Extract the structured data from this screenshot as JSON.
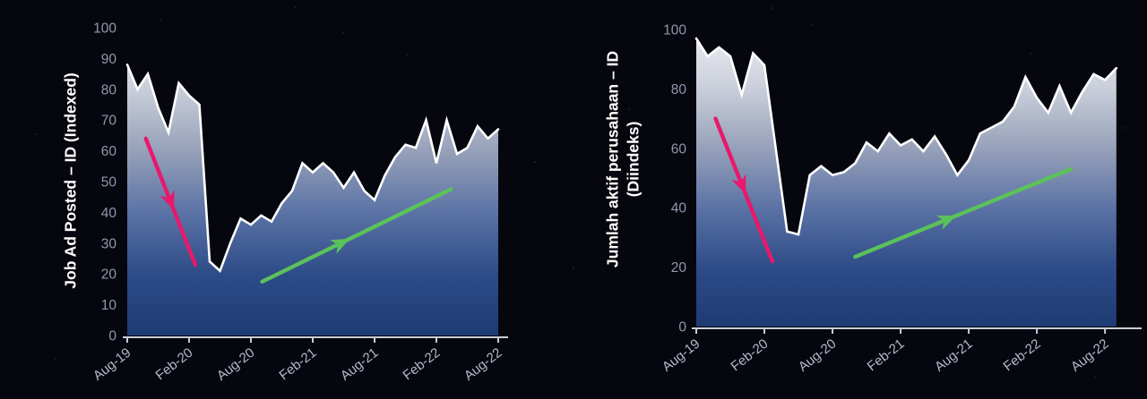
{
  "style": {
    "background": "#06070E",
    "area_line_color": "#FFFFFF",
    "area_gradient": [
      "#EDEEF2",
      "#C9CEDA",
      "#96A0B9",
      "#5A72A5",
      "#2D4B87",
      "#1D3A73"
    ],
    "axis_color": "#C9CDDB",
    "y_tick_label_color": "#9297AB",
    "x_tick_label_color": "#B4BACB",
    "title_color": "#FFFFFF",
    "arrow_down_color": "#E8186D",
    "arrow_up_color": "#5BC25A"
  },
  "chart_data": [
    {
      "type": "area",
      "title": "",
      "ylabel": "Job Ad Posted – ID (Indexed)",
      "ylabel_lines": [
        "Job Ad Posted – ID (Indexed)"
      ],
      "xlabel": "",
      "x_tick_labels": [
        "Aug-19",
        "Feb-20",
        "Aug-20",
        "Feb-21",
        "Aug-21",
        "Feb-22",
        "Aug-22"
      ],
      "x_tick_months": [
        0,
        6,
        12,
        18,
        24,
        30,
        36
      ],
      "ylim": [
        0,
        100
      ],
      "y_ticks": [
        0,
        10,
        20,
        30,
        40,
        50,
        60,
        70,
        80,
        90,
        100
      ],
      "grid": false,
      "legend": false,
      "x_unit": "month",
      "values": [
        88,
        80,
        85,
        74,
        66,
        82,
        78,
        75,
        24,
        21,
        30,
        38,
        36,
        39,
        37,
        43,
        47,
        56,
        53,
        56,
        53,
        48,
        53,
        47,
        44,
        52,
        58,
        62,
        61,
        70,
        56,
        70,
        59,
        61,
        68,
        64,
        67
      ],
      "annotations": [
        {
          "kind": "trend-arrow",
          "direction": "down",
          "from": {
            "month": 1.8,
            "value": 64
          },
          "to": {
            "month": 6.6,
            "value": 23
          },
          "head_t": 0.5
        },
        {
          "kind": "trend-arrow",
          "direction": "up",
          "from": {
            "month": 13.1,
            "value": 17.5
          },
          "to": {
            "month": 31.4,
            "value": 47.5
          },
          "head_t": 0.42
        }
      ]
    },
    {
      "type": "area",
      "title": "",
      "ylabel": "Jumlah aktif perusahaan – ID (Diindeks)",
      "ylabel_lines": [
        "Jumlah aktif perusahaan – ID",
        "(Diindeks)"
      ],
      "xlabel": "",
      "x_tick_labels": [
        "Aug-19",
        "Feb-20",
        "Aug-20",
        "Feb-21",
        "Aug-21",
        "Feb-22",
        "Aug-22"
      ],
      "x_tick_months": [
        0,
        6,
        12,
        18,
        24,
        30,
        36
      ],
      "ylim": [
        0,
        100
      ],
      "y_ticks": [
        0,
        20,
        40,
        60,
        80,
        100
      ],
      "grid": false,
      "legend": false,
      "x_unit": "month",
      "values": [
        97,
        91,
        94,
        91,
        78,
        92,
        88,
        60,
        32,
        31,
        51,
        54,
        51,
        52,
        55,
        62,
        59,
        65,
        61,
        63,
        59,
        64,
        58,
        51,
        56,
        65,
        67,
        69,
        74,
        84,
        77,
        72,
        81,
        72,
        79,
        85,
        83,
        87
      ],
      "annotations": [
        {
          "kind": "trend-arrow",
          "direction": "down",
          "from": {
            "month": 1.7,
            "value": 70
          },
          "to": {
            "month": 6.7,
            "value": 22
          },
          "head_t": 0.47
        },
        {
          "kind": "trend-arrow",
          "direction": "up",
          "from": {
            "month": 14,
            "value": 23.5
          },
          "to": {
            "month": 33,
            "value": 53
          },
          "head_t": 0.43
        }
      ]
    }
  ]
}
